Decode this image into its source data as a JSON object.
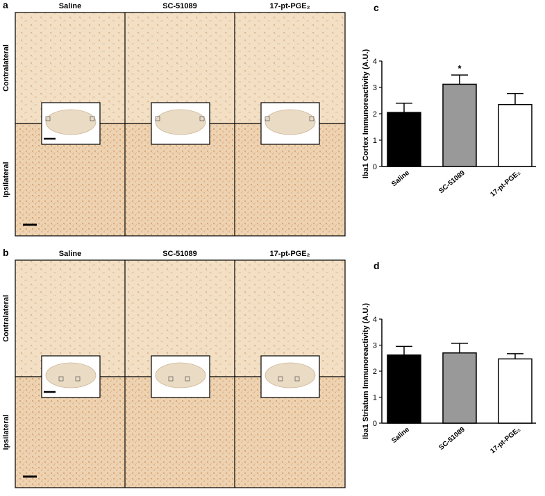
{
  "figure": {
    "panels": [
      {
        "letter": "a",
        "columns": [
          "Saline",
          "SC-51089",
          "17-pt-PGE₂"
        ],
        "rows": [
          "Contralateral",
          "Ipsilateral"
        ]
      },
      {
        "letter": "b",
        "columns": [
          "Saline",
          "SC-51089",
          "17-pt-PGE₂"
        ],
        "rows": [
          "Contralateral",
          "Ipsilateral"
        ]
      }
    ]
  },
  "chart_data": [
    {
      "type": "bar",
      "label": "c",
      "ylabel": "Iba1 Cortex Immunoreactivity (A.U.)",
      "categories": [
        "Saline",
        "SC-51089",
        "17-pt-PGE₂"
      ],
      "values": [
        2.05,
        3.12,
        2.35
      ],
      "errors": [
        0.35,
        0.35,
        0.42
      ],
      "colors": [
        "#000000",
        "#999999",
        "#ffffff"
      ],
      "significance": [
        null,
        "*",
        null
      ],
      "ylim": [
        0,
        4
      ],
      "yticks": [
        0,
        1,
        2,
        3,
        4
      ]
    },
    {
      "type": "bar",
      "label": "d",
      "ylabel": "Iba1 Striatum Immunoreactivity (A.U.)",
      "categories": [
        "Saline",
        "SC-51089",
        "17-pt-PGE₂"
      ],
      "values": [
        2.62,
        2.7,
        2.47
      ],
      "errors": [
        0.33,
        0.37,
        0.2
      ],
      "colors": [
        "#000000",
        "#999999",
        "#ffffff"
      ],
      "significance": [
        null,
        null,
        null
      ],
      "ylim": [
        0,
        4
      ],
      "yticks": [
        0,
        1,
        2,
        3,
        4
      ]
    }
  ]
}
